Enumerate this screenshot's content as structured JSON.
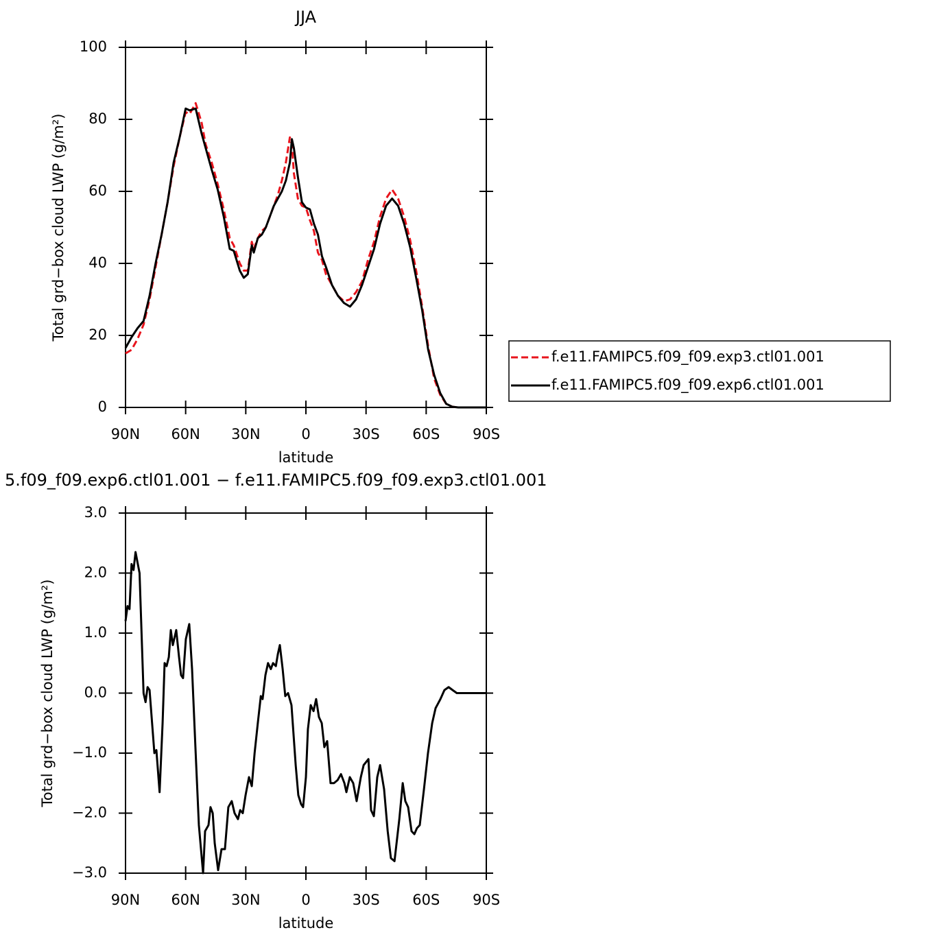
{
  "chart_data": [
    {
      "type": "line",
      "title": "JJA",
      "xlabel": "latitude",
      "ylabel": "Total grd−box cloud LWP (g/m²)",
      "x": [
        90,
        87,
        84,
        81,
        78,
        75,
        72,
        69,
        66,
        63,
        60,
        58,
        55,
        52,
        50,
        47,
        44,
        41,
        38,
        36,
        33,
        31,
        29,
        27,
        26,
        24,
        22,
        20,
        18,
        16,
        14,
        12,
        10,
        8,
        7,
        6,
        4,
        2,
        0,
        -2,
        -4,
        -6,
        -8,
        -10,
        -13,
        -16,
        -19,
        -22,
        -25,
        -28,
        -31,
        -34,
        -37,
        -40,
        -43,
        -46,
        -49,
        -52,
        -55,
        -58,
        -61,
        -64,
        -67,
        -70,
        -73,
        -76,
        -80,
        -85,
        -90
      ],
      "series": [
        {
          "name": "f.e11.FAMIPC5.f09_f09.exp3.ctl01.001",
          "color": "#e8141c",
          "linestyle": "dashed",
          "values": [
            15,
            16,
            19,
            23,
            30,
            39,
            48,
            57,
            67,
            75,
            82,
            81.5,
            84.5,
            79,
            73,
            68,
            62,
            55,
            47,
            45,
            40,
            38,
            38,
            46,
            44,
            47,
            49,
            50,
            53,
            56,
            59,
            63,
            68,
            75,
            73,
            65,
            58,
            56,
            55.5,
            52,
            49,
            43,
            41,
            37,
            34,
            31,
            29.5,
            30,
            32,
            35,
            41,
            46,
            53,
            58,
            60.5,
            58,
            53,
            46.5,
            38,
            28,
            17,
            8,
            3.5,
            1,
            0.2,
            0,
            0,
            0,
            0
          ]
        },
        {
          "name": "f.e11.FAMIPC5.f09_f09.exp6.ctl01.001",
          "color": "#000000",
          "linestyle": "solid",
          "values": [
            16.5,
            19.5,
            22,
            24,
            31,
            40,
            48,
            57,
            68,
            75,
            83,
            82.5,
            83,
            76,
            72,
            66,
            60.5,
            53,
            44,
            43.5,
            38,
            36,
            37,
            45,
            43,
            47,
            48,
            50,
            53,
            56,
            58,
            60,
            63,
            68,
            74.5,
            72,
            64,
            57,
            55.5,
            55,
            51,
            48,
            42,
            39,
            34,
            31,
            29,
            28,
            30,
            34,
            39,
            44,
            51,
            56,
            58,
            56,
            51,
            44.5,
            36,
            27,
            16,
            9,
            4,
            1,
            0.2,
            0,
            0,
            0,
            0
          ]
        }
      ],
      "xlim": [
        90,
        -90
      ],
      "ylim": [
        0,
        100
      ],
      "xticks": [
        {
          "value": 90,
          "label": "90N"
        },
        {
          "value": 60,
          "label": "60N"
        },
        {
          "value": 30,
          "label": "30N"
        },
        0,
        {
          "value": -30,
          "label": "30S"
        },
        {
          "value": -60,
          "label": "60S"
        },
        {
          "value": -90,
          "label": "90S"
        }
      ],
      "yticks": [
        0,
        20,
        40,
        60,
        80,
        100
      ],
      "legend": "right"
    },
    {
      "type": "line",
      "title": "5.f09_f09.exp6.ctl01.001 − f.e11.FAMIPC5.f09_f09.exp3.ctl01.001",
      "xlabel": "latitude",
      "ylabel": "Total grd−box cloud LWP (g/m²)",
      "x": [
        90,
        89,
        88,
        87,
        86,
        85,
        83,
        82,
        81,
        80,
        79,
        78,
        75.6,
        74.6,
        73,
        71.5,
        70.5,
        69.5,
        68.4,
        67.4,
        66.4,
        64.7,
        63.3,
        62.3,
        61.3,
        59.9,
        58.2,
        56.8,
        55,
        53.4,
        51.3,
        50.3,
        48.6,
        47.6,
        46.5,
        45.5,
        43.8,
        42.1,
        40.4,
        38.7,
        37,
        35.6,
        33.9,
        32.8,
        31.5,
        30.1,
        28.4,
        27,
        25.6,
        24,
        22.5,
        21.6,
        20.2,
        18.9,
        17.5,
        16.4,
        15,
        14,
        13,
        11.6,
        10.3,
        8.9,
        7.2,
        5.1,
        3.8,
        2.4,
        1.4,
        0,
        -1,
        -2.4,
        -3.8,
        -5.1,
        -6.5,
        -7.9,
        -9.2,
        -10.6,
        -12.3,
        -14,
        -15.8,
        -17.5,
        -19.2,
        -20.2,
        -21.9,
        -23.6,
        -25.3,
        -27.4,
        -28.8,
        -31.2,
        -32.5,
        -33.9,
        -35.6,
        -37,
        -39,
        -40.8,
        -42.4,
        -44.2,
        -46.6,
        -48.3,
        -49.6,
        -51,
        -52.7,
        -54.1,
        -55.4,
        -56.8,
        -58.9,
        -60.9,
        -63,
        -64.7,
        -67.1,
        -69.1,
        -71.2,
        -73.2,
        -75.3,
        -90
      ],
      "series": [
        {
          "color": "#000000",
          "values": [
            1.2,
            1.45,
            1.4,
            2.15,
            2.05,
            2.35,
            2.0,
            1.0,
            0.0,
            -0.15,
            0.1,
            0.05,
            -1.0,
            -0.95,
            -1.65,
            -0.5,
            0.5,
            0.45,
            0.6,
            1.05,
            0.8,
            1.05,
            0.6,
            0.3,
            0.25,
            0.9,
            1.15,
            0.4,
            -1.0,
            -2.2,
            -3.0,
            -2.3,
            -2.2,
            -1.9,
            -2.0,
            -2.5,
            -2.95,
            -2.6,
            -2.6,
            -1.9,
            -1.8,
            -2.0,
            -2.1,
            -1.95,
            -2.0,
            -1.7,
            -1.4,
            -1.55,
            -1.0,
            -0.5,
            -0.05,
            -0.1,
            0.3,
            0.5,
            0.4,
            0.5,
            0.45,
            0.65,
            0.8,
            0.4,
            -0.05,
            0.0,
            -0.2,
            -1.2,
            -1.7,
            -1.85,
            -1.9,
            -1.4,
            -0.6,
            -0.2,
            -0.3,
            -0.1,
            -0.4,
            -0.5,
            -0.9,
            -0.8,
            -1.5,
            -1.5,
            -1.45,
            -1.35,
            -1.5,
            -1.65,
            -1.4,
            -1.5,
            -1.8,
            -1.4,
            -1.2,
            -1.1,
            -1.95,
            -2.05,
            -1.4,
            -1.2,
            -1.6,
            -2.3,
            -2.75,
            -2.8,
            -2.1,
            -1.5,
            -1.8,
            -1.9,
            -2.3,
            -2.35,
            -2.25,
            -2.2,
            -1.6,
            -1.0,
            -0.5,
            -0.25,
            -0.1,
            0.05,
            0.1,
            0.05,
            0.0,
            0.0
          ]
        }
      ],
      "xlim": [
        90,
        -90
      ],
      "ylim": [
        -3,
        3
      ],
      "xticks": [
        {
          "value": 90,
          "label": "90N"
        },
        {
          "value": 60,
          "label": "60N"
        },
        {
          "value": 30,
          "label": "30N"
        },
        0,
        {
          "value": -30,
          "label": "30S"
        },
        {
          "value": -60,
          "label": "60S"
        },
        {
          "value": -90,
          "label": "90S"
        }
      ],
      "yticks": [
        {
          "value": -3,
          "label": "−3.0"
        },
        {
          "value": -2,
          "label": "−2.0"
        },
        {
          "value": -1,
          "label": "−1.0"
        },
        {
          "value": 0,
          "label": "0.0"
        },
        {
          "value": 1,
          "label": "1.0"
        },
        {
          "value": 2,
          "label": "2.0"
        },
        {
          "value": 3,
          "label": "3.0"
        }
      ]
    }
  ]
}
